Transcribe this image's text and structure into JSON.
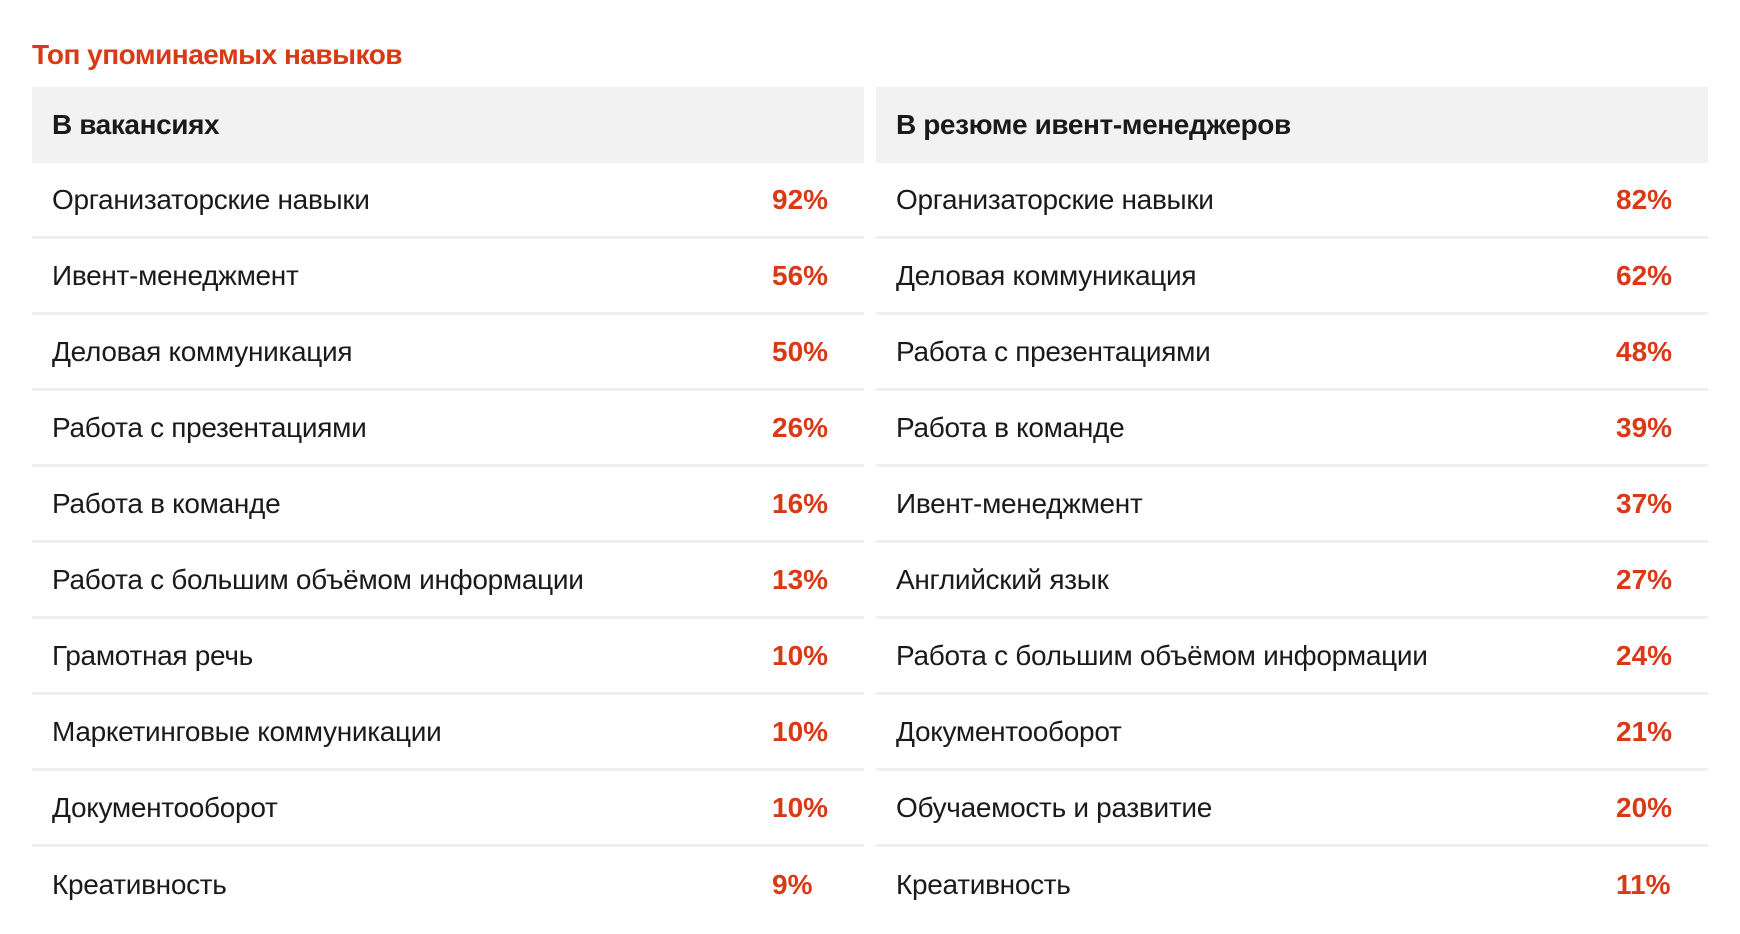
{
  "title": "Топ упоминаемых навыков",
  "accent_color": "#d83a16",
  "header_bg": "#f2f2f2",
  "vacancies": {
    "heading": "В вакансиях",
    "items": [
      {
        "skill": "Организаторские навыки",
        "percent": "92%"
      },
      {
        "skill": "Ивент-менеджмент",
        "percent": "56%"
      },
      {
        "skill": "Деловая коммуникация",
        "percent": "50%"
      },
      {
        "skill": "Работа с презентациями",
        "percent": "26%"
      },
      {
        "skill": "Работа в команде",
        "percent": "16%"
      },
      {
        "skill": "Работа с большим объёмом информации",
        "percent": "13%"
      },
      {
        "skill": "Грамотная речь",
        "percent": "10%"
      },
      {
        "skill": "Маркетинговые коммуникации",
        "percent": "10%"
      },
      {
        "skill": "Документооборот",
        "percent": "10%"
      },
      {
        "skill": "Креативность",
        "percent": "9%"
      }
    ]
  },
  "resumes": {
    "heading": "В резюме ивент-менеджеров",
    "items": [
      {
        "skill": "Организаторские навыки",
        "percent": "82%"
      },
      {
        "skill": "Деловая коммуникация",
        "percent": "62%"
      },
      {
        "skill": "Работа с презентациями",
        "percent": "48%"
      },
      {
        "skill": "Работа в команде",
        "percent": "39%"
      },
      {
        "skill": "Ивент-менеджмент",
        "percent": "37%"
      },
      {
        "skill": "Английский язык",
        "percent": "27%"
      },
      {
        "skill": "Работа с большим объёмом информации",
        "percent": "24%"
      },
      {
        "skill": "Документооборот",
        "percent": "21%"
      },
      {
        "skill": "Обучаемость и развитие",
        "percent": "20%"
      },
      {
        "skill": "Креативность",
        "percent": "11%"
      }
    ]
  }
}
